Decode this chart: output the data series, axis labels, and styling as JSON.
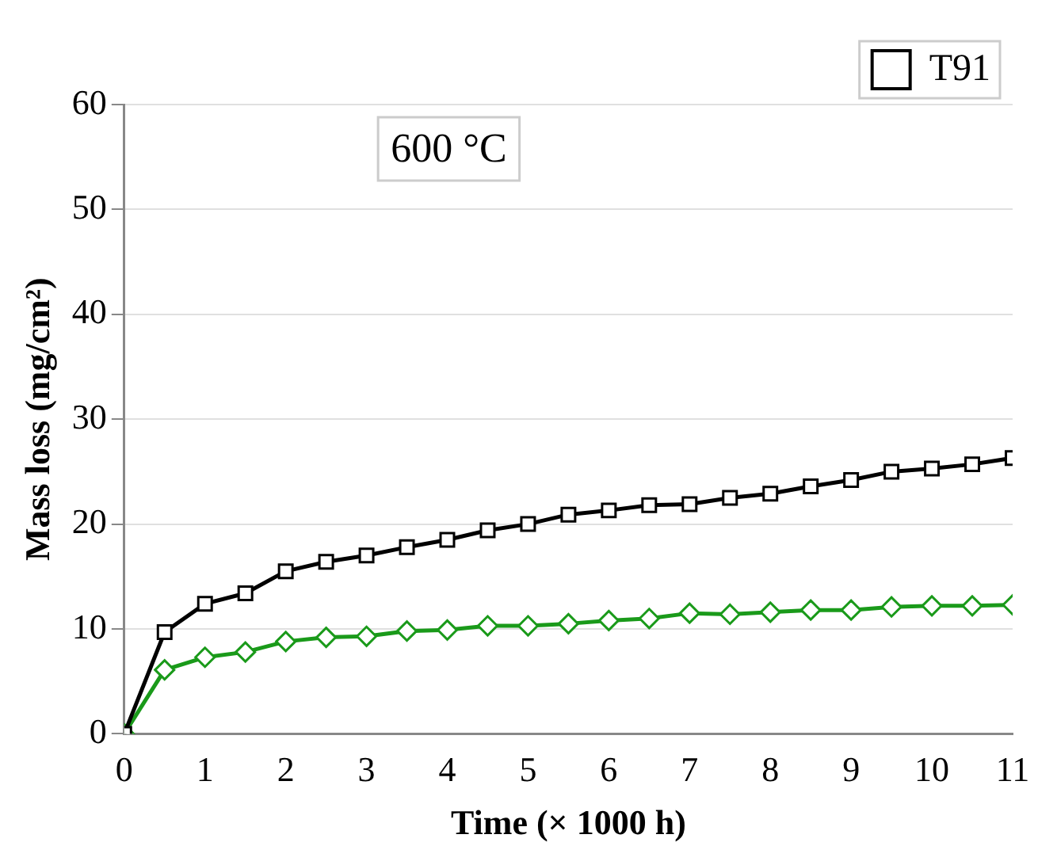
{
  "chart_data": {
    "type": "line",
    "xlabel": "Time (× 1000 h)",
    "ylabel": "Mass loss (mg/cm²)",
    "annotations": [
      "600 °C"
    ],
    "x": [
      0,
      0.5,
      1,
      1.5,
      2,
      2.5,
      3,
      3.5,
      4,
      4.5,
      5,
      5.5,
      6,
      6.5,
      7,
      7.5,
      8,
      8.5,
      9,
      9.5,
      10,
      10.5,
      11
    ],
    "series": [
      {
        "name": "T91",
        "color": "#000000",
        "marker": "square",
        "values": [
          0,
          9.7,
          12.4,
          13.4,
          15.5,
          16.4,
          17.0,
          17.8,
          18.5,
          19.4,
          20.0,
          20.9,
          21.3,
          21.8,
          21.9,
          22.5,
          22.9,
          23.6,
          24.2,
          25.0,
          25.3,
          25.7,
          26.3
        ]
      },
      {
        "color": "#1a9a1a",
        "marker": "diamond",
        "values": [
          0,
          6.1,
          7.3,
          7.8,
          8.8,
          9.2,
          9.3,
          9.8,
          9.9,
          10.3,
          10.3,
          10.5,
          10.8,
          11.0,
          11.5,
          11.4,
          11.6,
          11.8,
          11.8,
          12.1,
          12.2,
          12.2,
          12.3
        ]
      }
    ],
    "xlim": [
      0,
      11
    ],
    "xticks": [
      0,
      1,
      2,
      3,
      4,
      5,
      6,
      7,
      8,
      9,
      10,
      11
    ],
    "ylim": [
      0,
      60
    ],
    "yticks": [
      0,
      10,
      20,
      30,
      40,
      50,
      60
    ],
    "grid": "y",
    "legend": "top right"
  }
}
